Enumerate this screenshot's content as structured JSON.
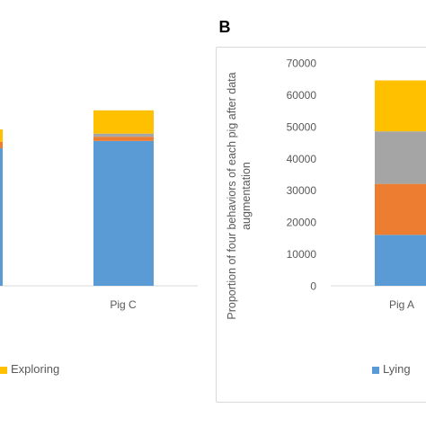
{
  "panel_label": "B",
  "chart_data": [
    {
      "type": "bar",
      "stacked": true,
      "categories": [
        "Pig C"
      ],
      "series": [
        {
          "name": "",
          "color": "#5b9bd5",
          "values": [
            45500
          ]
        },
        {
          "name": "",
          "color": "#ed7d31",
          "values": [
            1300
          ]
        },
        {
          "name": "",
          "color": "#a5a5a5",
          "values": [
            1000
          ]
        },
        {
          "name": "Exploring",
          "color": "#ffc000",
          "values": [
            7300
          ]
        }
      ],
      "legend_position": "bottom"
    },
    {
      "type": "bar",
      "stacked": true,
      "categories": [
        "Pig A"
      ],
      "ylabel": "Proportion of four behaviors of each pig after data augmentation",
      "ylim": [
        0,
        70000
      ],
      "yticks": [
        "0",
        "10000",
        "20000",
        "30000",
        "40000",
        "50000",
        "60000",
        "70000"
      ],
      "series": [
        {
          "name": "Lying",
          "color": "#5b9bd5",
          "values": [
            16000
          ]
        },
        {
          "name": "",
          "color": "#ed7d31",
          "values": [
            16000
          ]
        },
        {
          "name": "",
          "color": "#a5a5a5",
          "values": [
            16500
          ]
        },
        {
          "name": "",
          "color": "#ffc000",
          "values": [
            16000
          ]
        }
      ],
      "legend_position": "bottom"
    }
  ]
}
